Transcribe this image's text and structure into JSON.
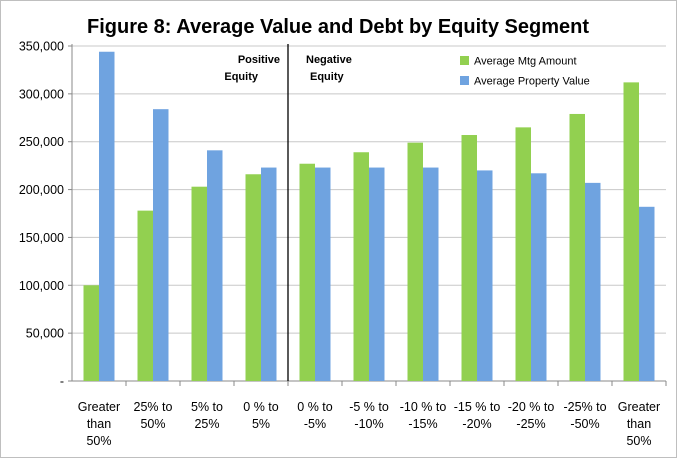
{
  "chart_data": {
    "type": "bar",
    "title": "Figure 8: Average Value and Debt by Equity Segment",
    "xlabel": "",
    "ylabel": "",
    "ylim": [
      0,
      350000
    ],
    "yticks": [
      "-",
      "50,000",
      "100,000",
      "150,000",
      "200,000",
      "250,000",
      "300,000",
      "350,000"
    ],
    "grid": true,
    "legend_position": "top-right",
    "categories": [
      [
        "Greater",
        "than",
        "50%"
      ],
      [
        "25% to",
        "50%"
      ],
      [
        "5% to",
        "25%"
      ],
      [
        "0 % to",
        "5%"
      ],
      [
        "0 % to",
        "-5%"
      ],
      [
        "-5 % to",
        "-10%"
      ],
      [
        "-10 % to",
        "-15%"
      ],
      [
        "-15 % to",
        "-20%"
      ],
      [
        "-20 % to",
        "-25%"
      ],
      [
        "-25% to",
        "-50%"
      ],
      [
        "Greater",
        "than",
        "50%"
      ]
    ],
    "series": [
      {
        "name": "Average Mtg Amount",
        "color": "#92d050",
        "values": [
          100000,
          178000,
          203000,
          216000,
          227000,
          239000,
          249000,
          257000,
          265000,
          279000,
          312000
        ]
      },
      {
        "name": "Average Property Value",
        "color": "#6fa3e0",
        "values": [
          344000,
          284000,
          241000,
          223000,
          223000,
          223000,
          223000,
          220000,
          217000,
          207000,
          182000
        ]
      }
    ],
    "annotations": {
      "positive": [
        "Positive",
        "Equity"
      ],
      "negative": [
        "Negative",
        "Equity"
      ]
    }
  }
}
